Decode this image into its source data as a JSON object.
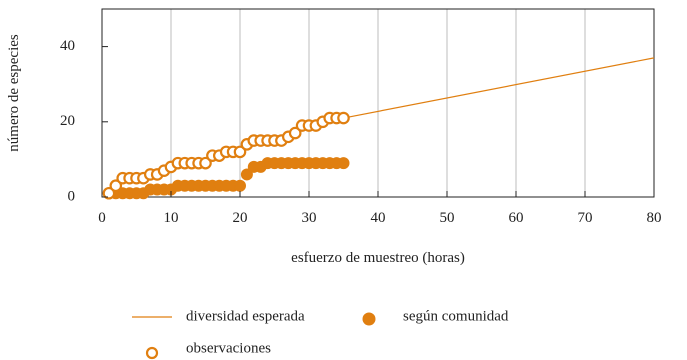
{
  "chart_data": {
    "type": "scatter",
    "xlabel": "esfuerzo de muestreo (horas)",
    "ylabel": "número de especies",
    "xlim": [
      0,
      80
    ],
    "ylim": [
      0,
      50
    ],
    "x_ticks": [
      0,
      10,
      20,
      30,
      40,
      50,
      60,
      70,
      80
    ],
    "y_ticks": [
      0,
      20,
      40
    ],
    "grid": true,
    "legend_position": "bottom",
    "colors": {
      "accent": "#e07f10",
      "grid": "#bdbdbd",
      "axis": "#222222"
    },
    "series": [
      {
        "name": "diversidad esperada",
        "kind": "line",
        "x": [
          35,
          80
        ],
        "y": [
          21,
          37
        ]
      },
      {
        "name": "según comunidad",
        "kind": "filled-marker",
        "x": [
          1,
          2,
          3,
          4,
          5,
          6,
          7,
          8,
          9,
          10,
          11,
          12,
          13,
          14,
          15,
          16,
          17,
          18,
          19,
          20,
          21,
          22,
          23,
          24,
          25,
          26,
          27,
          28,
          29,
          30,
          31,
          32,
          33,
          34,
          35
        ],
        "y": [
          1,
          1,
          1,
          1,
          1,
          1,
          2,
          2,
          2,
          2,
          3,
          3,
          3,
          3,
          3,
          3,
          3,
          3,
          3,
          3,
          6,
          8,
          8,
          9,
          9,
          9,
          9,
          9,
          9,
          9,
          9,
          9,
          9,
          9,
          9
        ]
      },
      {
        "name": "observaciones",
        "kind": "open-marker",
        "x": [
          1,
          2,
          3,
          4,
          5,
          6,
          7,
          8,
          9,
          10,
          11,
          12,
          13,
          14,
          15,
          16,
          17,
          18,
          19,
          20,
          21,
          22,
          23,
          24,
          25,
          26,
          27,
          28,
          29,
          30,
          31,
          32,
          33,
          34,
          35
        ],
        "y": [
          1,
          3,
          5,
          5,
          5,
          5,
          6,
          6,
          7,
          8,
          9,
          9,
          9,
          9,
          9,
          11,
          11,
          12,
          12,
          12,
          14,
          15,
          15,
          15,
          15,
          15,
          16,
          17,
          19,
          19,
          19,
          20,
          21,
          21,
          21
        ]
      }
    ]
  }
}
